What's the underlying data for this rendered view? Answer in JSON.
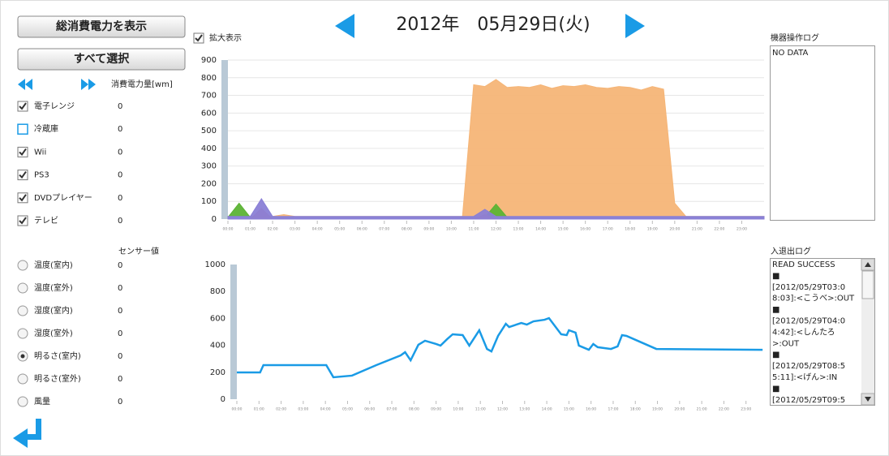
{
  "buttons": [
    "総消費電力を表示",
    "すべて選択"
  ],
  "date": "2012年　05月29日(火)",
  "zoom_label": "拡大表示",
  "zoom_checked": true,
  "power_header": "消費電力量[wm]",
  "devices": [
    {
      "label": "電子レンジ",
      "color": "#e36c6c",
      "checked": true,
      "value": 0,
      "values": [
        0,
        0,
        0,
        60,
        0,
        0,
        0,
        0,
        0,
        0,
        0,
        0,
        0,
        0,
        0,
        0,
        0,
        0,
        0,
        0,
        0,
        0,
        0,
        25,
        0,
        0,
        0,
        0,
        0,
        0,
        0,
        0,
        0,
        0,
        0,
        0,
        0,
        0,
        0,
        0,
        0,
        0,
        0,
        0,
        0,
        0,
        0,
        0,
        0
      ]
    },
    {
      "label": "冷蔵庫",
      "color": "#333333",
      "checked": false,
      "value": 0
    },
    {
      "label": "Wii",
      "color": "#8a7fd6",
      "checked": true,
      "value": 0,
      "values": [
        15,
        15,
        15,
        115,
        15,
        15,
        15,
        15,
        15,
        15,
        15,
        15,
        15,
        15,
        15,
        15,
        15,
        15,
        15,
        15,
        15,
        15,
        15,
        55,
        15,
        15,
        15,
        15,
        15,
        15,
        15,
        15,
        15,
        15,
        15,
        15,
        15,
        15,
        15,
        15,
        15,
        15,
        15,
        15,
        15,
        15,
        15,
        15,
        15
      ]
    },
    {
      "label": "PS3",
      "color": "#7fb2e0",
      "checked": true,
      "value": 0,
      "values": [
        12,
        12,
        12,
        12,
        12,
        12,
        12,
        12,
        12,
        12,
        12,
        12,
        12,
        12,
        12,
        12,
        12,
        12,
        12,
        12,
        12,
        12,
        12,
        12,
        12,
        12,
        12,
        12,
        12,
        12,
        12,
        12,
        12,
        12,
        12,
        12,
        12,
        12,
        12,
        12,
        12,
        12,
        12,
        12,
        12,
        12,
        12,
        12,
        12
      ]
    },
    {
      "label": "DVDプレイヤー",
      "color": "#5cb335",
      "checked": true,
      "value": 0,
      "values": [
        10,
        90,
        10,
        10,
        10,
        10,
        10,
        10,
        10,
        10,
        10,
        10,
        10,
        10,
        10,
        10,
        10,
        10,
        10,
        10,
        10,
        10,
        10,
        10,
        85,
        10,
        10,
        10,
        10,
        10,
        10,
        10,
        10,
        10,
        10,
        10,
        10,
        10,
        10,
        10,
        10,
        10,
        10,
        10,
        10,
        10,
        10,
        10,
        10
      ]
    },
    {
      "label": "テレビ",
      "color": "#f5b577",
      "checked": true,
      "value": 0,
      "values": [
        15,
        15,
        15,
        15,
        15,
        25,
        15,
        15,
        15,
        15,
        15,
        15,
        15,
        15,
        15,
        15,
        15,
        15,
        15,
        15,
        15,
        15,
        760,
        750,
        790,
        745,
        750,
        745,
        760,
        740,
        755,
        750,
        760,
        745,
        740,
        750,
        745,
        730,
        750,
        735,
        90,
        15,
        15,
        15,
        15,
        15,
        15,
        15,
        15
      ]
    }
  ],
  "sensor_header": "センサー値",
  "sensors": [
    {
      "label": "温度(室内)",
      "selected": false,
      "value": 0
    },
    {
      "label": "温度(室外)",
      "selected": false,
      "value": 0
    },
    {
      "label": "湿度(室内)",
      "selected": false,
      "value": 0
    },
    {
      "label": "湿度(室外)",
      "selected": false,
      "value": 0
    },
    {
      "label": "明るさ(室内)",
      "selected": true,
      "value": 0
    },
    {
      "label": "明るさ(室外)",
      "selected": false,
      "value": 0
    },
    {
      "label": "風量",
      "selected": false,
      "value": 0
    }
  ],
  "power_chart": {
    "type": "area",
    "x": [
      0,
      0.5,
      1,
      1.5,
      2,
      2.5,
      3,
      3.5,
      4,
      4.5,
      5,
      5.5,
      6,
      6.5,
      7,
      7.5,
      8,
      8.5,
      9,
      9.5,
      10,
      10.5,
      11,
      11.5,
      12,
      12.5,
      13,
      13.5,
      14,
      14.5,
      15,
      15.5,
      16,
      16.5,
      17,
      17.5,
      18,
      18.5,
      19,
      19.5,
      20,
      20.5,
      21,
      21.5,
      22,
      22.5,
      23,
      23.5,
      24
    ],
    "draw_order": [
      5,
      4,
      3,
      0,
      2
    ],
    "xlim": [
      0,
      24
    ],
    "ylim": [
      0,
      900
    ],
    "yticks": [
      0,
      100,
      200,
      300,
      400,
      500,
      600,
      700,
      800,
      900
    ],
    "xticks": [
      {
        "value": 0,
        "label": "00:00"
      },
      {
        "value": 1,
        "label": "01:00"
      },
      {
        "value": 2,
        "label": "02:00"
      },
      {
        "value": 3,
        "label": "03:00"
      },
      {
        "value": 4,
        "label": "04:00"
      },
      {
        "value": 5,
        "label": "05:00"
      },
      {
        "value": 6,
        "label": "06:00"
      },
      {
        "value": 7,
        "label": "07:00"
      },
      {
        "value": 8,
        "label": "08:00"
      },
      {
        "value": 9,
        "label": "09:00"
      },
      {
        "value": 10,
        "label": "10:00"
      },
      {
        "value": 11,
        "label": "11:00"
      },
      {
        "value": 12,
        "label": "12:00"
      },
      {
        "value": 13,
        "label": "13:00"
      },
      {
        "value": 14,
        "label": "14:00"
      },
      {
        "value": 15,
        "label": "15:00"
      },
      {
        "value": 16,
        "label": "16:00"
      },
      {
        "value": 17,
        "label": "17:00"
      },
      {
        "value": 18,
        "label": "18:00"
      },
      {
        "value": 19,
        "label": "19:00"
      },
      {
        "value": 20,
        "label": "20:00"
      },
      {
        "value": 21,
        "label": "21:00"
      },
      {
        "value": 22,
        "label": "22:00"
      },
      {
        "value": 23,
        "label": "23:00"
      }
    ],
    "grid": true
  },
  "sensor_chart": {
    "type": "line",
    "color": "#1a9be6",
    "x": [
      0,
      1.05,
      1.2,
      4.04,
      4.36,
      5.2,
      6.3,
      7.4,
      7.6,
      7.85,
      8.2,
      8.5,
      9.0,
      9.2,
      9.5,
      9.75,
      10.2,
      10.5,
      10.95,
      11.3,
      11.5,
      11.8,
      12.15,
      12.3,
      12.85,
      13.1,
      13.4,
      13.9,
      14.1,
      14.65,
      14.9,
      15.0,
      15.3,
      15.45,
      15.9,
      16.1,
      16.3,
      16.9,
      17.2,
      17.4,
      17.6,
      18.1,
      18.95,
      23.75
    ],
    "values": [
      199,
      199,
      253,
      253,
      163,
      175,
      253,
      325,
      349,
      289,
      404,
      434,
      410,
      398,
      446,
      482,
      476,
      398,
      512,
      373,
      355,
      470,
      560,
      536,
      566,
      554,
      578,
      590,
      602,
      482,
      476,
      512,
      494,
      398,
      367,
      410,
      386,
      373,
      392,
      476,
      470,
      434,
      373,
      367
    ],
    "xlim": [
      0,
      24
    ],
    "ylim": [
      0,
      1000
    ],
    "yticks": [
      0,
      200,
      400,
      600,
      800,
      1000
    ],
    "xticks": [
      {
        "value": 0,
        "label": "00:00"
      },
      {
        "value": 1,
        "label": "01:00"
      },
      {
        "value": 2,
        "label": "02:00"
      },
      {
        "value": 3,
        "label": "03:00"
      },
      {
        "value": 4,
        "label": "04:00"
      },
      {
        "value": 5,
        "label": "05:00"
      },
      {
        "value": 6,
        "label": "06:00"
      },
      {
        "value": 7,
        "label": "07:00"
      },
      {
        "value": 8,
        "label": "08:00"
      },
      {
        "value": 9,
        "label": "09:00"
      },
      {
        "value": 10,
        "label": "10:00"
      },
      {
        "value": 11,
        "label": "11:00"
      },
      {
        "value": 12,
        "label": "12:00"
      },
      {
        "value": 13,
        "label": "13:00"
      },
      {
        "value": 14,
        "label": "14:00"
      },
      {
        "value": 15,
        "label": "15:00"
      },
      {
        "value": 16,
        "label": "16:00"
      },
      {
        "value": 17,
        "label": "17:00"
      },
      {
        "value": 18,
        "label": "18:00"
      },
      {
        "value": 19,
        "label": "19:00"
      },
      {
        "value": 20,
        "label": "20:00"
      },
      {
        "value": 21,
        "label": "21:00"
      },
      {
        "value": 22,
        "label": "22:00"
      },
      {
        "value": 23,
        "label": "23:00"
      }
    ],
    "grid": false
  },
  "operation_log": {
    "title": "機器操作ログ",
    "lines": [
      "NO DATA"
    ]
  },
  "access_log": {
    "title": "入退出ログ",
    "lines": [
      "READ SUCCESS",
      "■",
      "[2012/05/29T03:0",
      "8:03]:<こうべ>:OUT",
      "■",
      "[2012/05/29T04:0",
      "4:42]:<しんたろ",
      ">:OUT",
      "■",
      "[2012/05/29T08:5",
      "5:11]:<げん>:IN",
      "■",
      "[2012/05/29T09:5"
    ]
  }
}
